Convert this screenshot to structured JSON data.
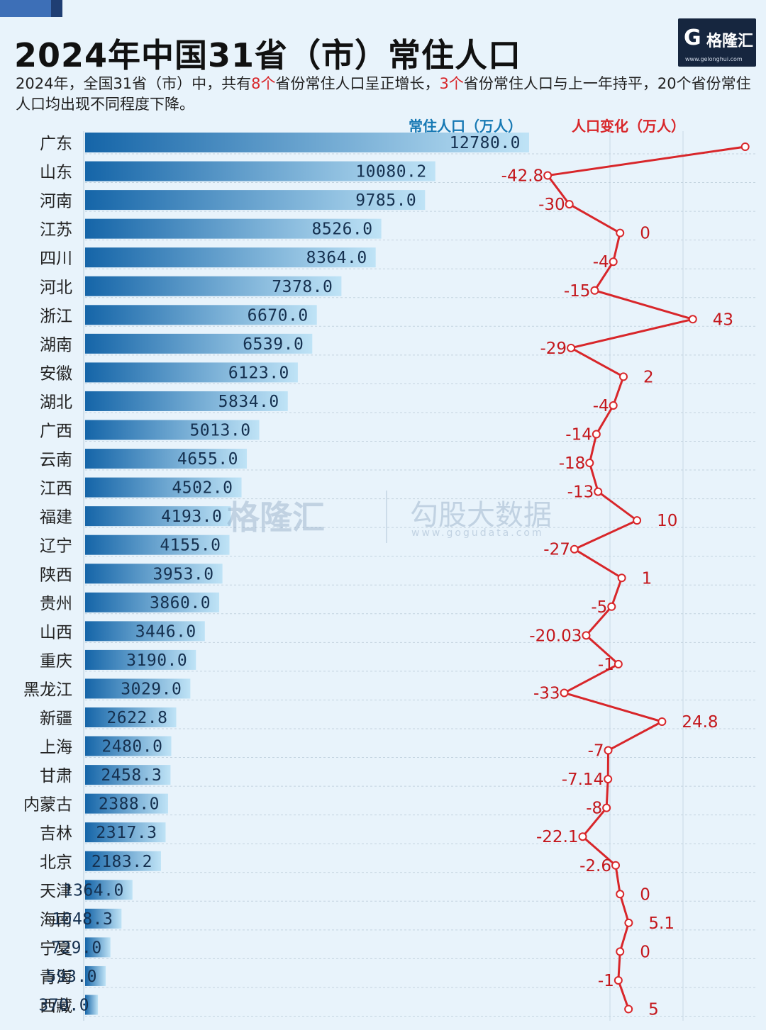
{
  "header": {
    "title": "2024年中国31省（市）常住人口",
    "subtitle_parts": [
      {
        "text": "2024年，全国31省（市）中，共有",
        "hl": false
      },
      {
        "text": "8个",
        "hl": true
      },
      {
        "text": "省份常住人口呈正增长，",
        "hl": false
      },
      {
        "text": "3个",
        "hl": true
      },
      {
        "text": "省份常住人口与上一年持平，",
        "hl": false
      },
      {
        "text": "20个省份常住人口均出现不同程度下降。",
        "hl": false
      }
    ]
  },
  "logo": {
    "mark": "G",
    "text": "格隆汇",
    "url": "www.gelonghui.com"
  },
  "watermark": {
    "brand": "格隆汇",
    "name": "勾股大数据",
    "url": "www.gogudata.com"
  },
  "colors": {
    "bar_dark": "#1565a8",
    "bar_light": "#bfe3f6",
    "line": "#d8262a",
    "accent_blue": "#1779b4"
  },
  "chart_data": {
    "type": "bar",
    "legend": {
      "population": "常住人口（万人）",
      "change": "人口变化（万人）"
    },
    "categories": [
      "广东",
      "山东",
      "河南",
      "江苏",
      "四川",
      "河北",
      "浙江",
      "湖南",
      "安徽",
      "湖北",
      "广西",
      "云南",
      "江西",
      "福建",
      "辽宁",
      "陕西",
      "贵州",
      "山西",
      "重庆",
      "黑龙江",
      "新疆",
      "上海",
      "甘肃",
      "内蒙古",
      "吉林",
      "北京",
      "天津",
      "海南",
      "宁夏",
      "青海",
      "西藏"
    ],
    "series": [
      {
        "name": "常住人口（万人）",
        "type": "bar",
        "values": [
          12780.0,
          10080.2,
          9785.0,
          8526.0,
          8364.0,
          7378.0,
          6670.0,
          6539.0,
          6123.0,
          5834.0,
          5013.0,
          4655.0,
          4502.0,
          4193.0,
          4155.0,
          3953.0,
          3860.0,
          3446.0,
          3190.0,
          3029.0,
          2622.8,
          2480.0,
          2458.3,
          2388.0,
          2317.3,
          2183.2,
          1364.0,
          1048.3,
          729.0,
          593.0,
          370.0
        ],
        "labels": [
          "12780.0",
          "10080.2",
          "9785.0",
          "8526.0",
          "8364.0",
          "7378.0",
          "6670.0",
          "6539.0",
          "6123.0",
          "5834.0",
          "5013.0",
          "4655.0",
          "4502.0",
          "4193.0",
          "4155.0",
          "3953.0",
          "3860.0",
          "3446.0",
          "3190.0",
          "3029.0",
          "2622.8",
          "2480.0",
          "2458.3",
          "2388.0",
          "2317.3",
          "2183.2",
          "1364.0",
          "1048.3",
          "729.0",
          "593.0",
          "370.0"
        ]
      },
      {
        "name": "人口变化（万人）",
        "type": "line",
        "values": [
          74,
          -42.8,
          -30,
          0,
          -4,
          -15,
          43,
          -29,
          2,
          -4,
          -14,
          -18,
          -13,
          10,
          -27,
          1,
          -5,
          -20.03,
          -1,
          -33,
          24.8,
          -7,
          -7.14,
          -8,
          -22.1,
          -2.6,
          0,
          5.1,
          0,
          -1,
          5
        ],
        "labels": [
          "74",
          "-42.8",
          "-30",
          "0",
          "-4",
          "-15",
          "43",
          "-29",
          "2",
          "-4",
          "-14",
          "-18",
          "-13",
          "10",
          "-27",
          "1",
          "-5",
          "-20.03",
          "-1",
          "-33",
          "24.8",
          "-7",
          "-7.14",
          "-8",
          "-22.1",
          "-2.6",
          "0",
          "5.1",
          "0",
          "-1",
          "5"
        ]
      }
    ],
    "xlim_population": [
      0,
      12780
    ],
    "xlim_change": [
      -50,
      80
    ],
    "grid": true
  }
}
